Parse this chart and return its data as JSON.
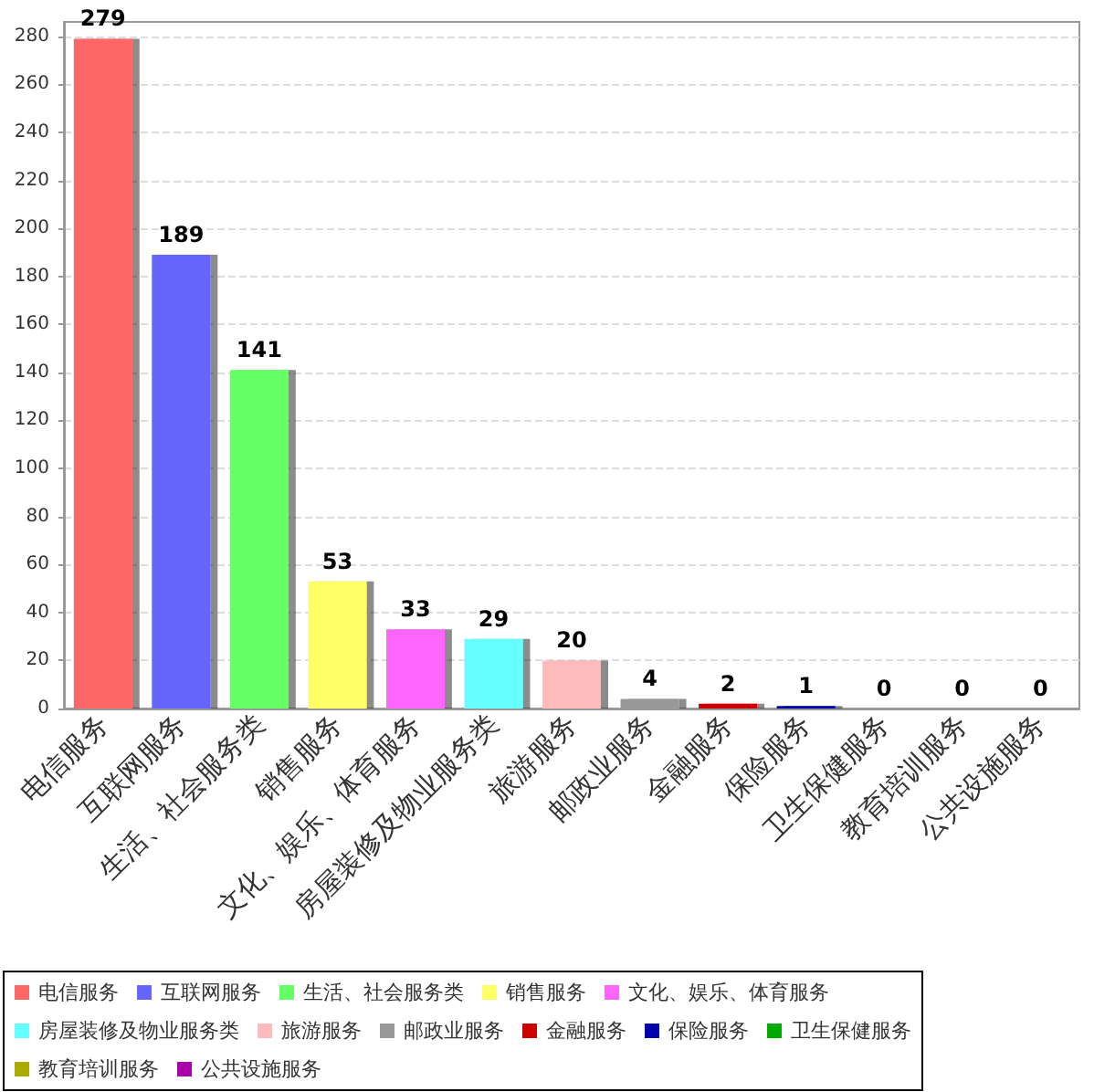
{
  "chart_data": {
    "type": "bar",
    "categories": [
      "电信服务",
      "互联网服务",
      "生活、社会服务类",
      "销售服务",
      "文化、娱乐、体育服务",
      "房屋装修及物业服务类",
      "旅游服务",
      "邮政业服务",
      "金融服务",
      "保险服务",
      "卫生保健服务",
      "教育培训服务",
      "公共设施服务"
    ],
    "series": [
      {
        "name": "电信服务",
        "color": "#ff6666",
        "values": [
          279,
          null,
          null,
          null,
          null,
          null,
          null,
          null,
          null,
          null,
          null,
          null,
          null
        ]
      },
      {
        "name": "互联网服务",
        "color": "#6666ff",
        "values": [
          null,
          189,
          null,
          null,
          null,
          null,
          null,
          null,
          null,
          null,
          null,
          null,
          null
        ]
      },
      {
        "name": "生活、社会服务类",
        "color": "#66ff66",
        "values": [
          null,
          null,
          141,
          null,
          null,
          null,
          null,
          null,
          null,
          null,
          null,
          null,
          null
        ]
      },
      {
        "name": "销售服务",
        "color": "#ffff66",
        "values": [
          null,
          null,
          null,
          53,
          null,
          null,
          null,
          null,
          null,
          null,
          null,
          null,
          null
        ]
      },
      {
        "name": "文化、娱乐、体育服务",
        "color": "#ff66ff",
        "values": [
          null,
          null,
          null,
          null,
          33,
          null,
          null,
          null,
          null,
          null,
          null,
          null,
          null
        ]
      },
      {
        "name": "房屋装修及物业服务类",
        "color": "#66ffff",
        "values": [
          null,
          null,
          null,
          null,
          null,
          29,
          null,
          null,
          null,
          null,
          null,
          null,
          null
        ]
      },
      {
        "name": "旅游服务",
        "color": "#ffbbbb",
        "values": [
          null,
          null,
          null,
          null,
          null,
          null,
          20,
          null,
          null,
          null,
          null,
          null,
          null
        ]
      },
      {
        "name": "邮政业服务",
        "color": "#999999",
        "values": [
          null,
          null,
          null,
          null,
          null,
          null,
          null,
          4,
          null,
          null,
          null,
          null,
          null
        ]
      },
      {
        "name": "金融服务",
        "color": "#cc0000",
        "values": [
          null,
          null,
          null,
          null,
          null,
          null,
          null,
          null,
          2,
          null,
          null,
          null,
          null
        ]
      },
      {
        "name": "保险服务",
        "color": "#0000aa",
        "values": [
          null,
          null,
          null,
          null,
          null,
          null,
          null,
          null,
          null,
          1,
          null,
          null,
          null
        ]
      },
      {
        "name": "卫生保健服务",
        "color": "#00aa00",
        "values": [
          null,
          null,
          null,
          null,
          null,
          null,
          null,
          null,
          null,
          null,
          0,
          null,
          null
        ]
      },
      {
        "name": "教育培训服务",
        "color": "#aaaa00",
        "values": [
          null,
          null,
          null,
          null,
          null,
          null,
          null,
          null,
          null,
          null,
          null,
          0,
          null
        ]
      },
      {
        "name": "公共设施服务",
        "color": "#aa00aa",
        "values": [
          null,
          null,
          null,
          null,
          null,
          null,
          null,
          null,
          null,
          null,
          null,
          null,
          0
        ]
      }
    ],
    "ylim": [
      0,
      286
    ],
    "yticks": [
      0,
      20,
      40,
      60,
      80,
      100,
      120,
      140,
      160,
      180,
      200,
      220,
      240,
      260,
      280
    ],
    "grid": "y",
    "legend": "bottom",
    "data_labels": true
  }
}
